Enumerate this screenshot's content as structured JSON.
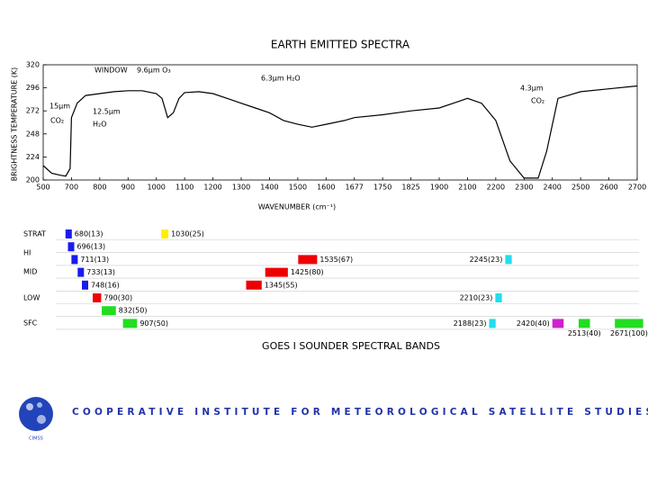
{
  "chart_data": [
    {
      "type": "line",
      "title": "EARTH EMITTED SPECTRA",
      "y_label": "BRIGHTNESS TEMPERATURE (K)",
      "x_label": "WAVENUMBER (cm⁻¹)",
      "ylim": [
        200,
        320
      ],
      "yticks": [
        320,
        296,
        272,
        248,
        224,
        200
      ],
      "xlim": [
        500,
        2700
      ],
      "xticks": [
        500,
        700,
        800,
        900,
        1000,
        1100,
        1200,
        1300,
        1400,
        1500,
        1600,
        1677,
        1750,
        1825,
        1900,
        2100,
        2200,
        2300,
        2400,
        2500,
        2600,
        2700
      ],
      "x": [
        500,
        560,
        620,
        660,
        690,
        700,
        720,
        750,
        800,
        850,
        900,
        950,
        1000,
        1020,
        1040,
        1060,
        1080,
        1100,
        1150,
        1200,
        1250,
        1300,
        1350,
        1400,
        1450,
        1500,
        1550,
        1600,
        1650,
        1677,
        1750,
        1825,
        1900,
        2000,
        2100,
        2150,
        2200,
        2250,
        2300,
        2350,
        2380,
        2420,
        2500,
        2600,
        2700
      ],
      "values": [
        215,
        207,
        205,
        204,
        212,
        265,
        280,
        288,
        290,
        292,
        293,
        293,
        290,
        285,
        265,
        270,
        285,
        291,
        292,
        290,
        285,
        280,
        275,
        270,
        262,
        258,
        255,
        258,
        262,
        265,
        268,
        272,
        275,
        280,
        285,
        280,
        262,
        220,
        202,
        202,
        230,
        285,
        292,
        295,
        298
      ],
      "color": "#000000",
      "annotations": [
        "WINDOW",
        "9.6μm O₃",
        "6.3μm H₂O",
        "15μm",
        "CO₂",
        "12.5μm",
        "H₂O",
        "4.3μm",
        "CO₂"
      ]
    },
    {
      "type": "bands",
      "title": "GOES I SOUNDER SPECTRAL BANDS",
      "row_labels": [
        "STRAT",
        "HI",
        "MID",
        "LOW",
        "SFC"
      ],
      "rows": [
        [
          {
            "value": 680,
            "width": 13,
            "label": "680(13)",
            "color": "#1a1aee"
          },
          {
            "value": 1030,
            "width": 25,
            "label": "1030(25)",
            "color": "#ffee00"
          }
        ],
        [
          {
            "value": 696,
            "width": 13,
            "label": "696(13)",
            "color": "#1a1aee"
          }
        ],
        [
          {
            "value": 711,
            "width": 13,
            "label": "711(13)",
            "color": "#1a1aee"
          },
          {
            "value": 1535,
            "width": 67,
            "label": "1535(67)",
            "color": "#ee0000"
          },
          {
            "value": 2245,
            "width": 23,
            "label": "2245(23)",
            "color": "#22ddee"
          }
        ],
        [
          {
            "value": 733,
            "width": 13,
            "label": "733(13)",
            "color": "#1a1aee"
          },
          {
            "value": 1425,
            "width": 80,
            "label": "1425(80)",
            "color": "#ee0000"
          }
        ],
        [
          {
            "value": 748,
            "width": 16,
            "label": "748(16)",
            "color": "#1a1aee"
          },
          {
            "value": 1345,
            "width": 55,
            "label": "1345(55)",
            "color": "#ee0000"
          }
        ],
        [
          {
            "value": 790,
            "width": 30,
            "label": "790(30)",
            "color": "#ee0000"
          },
          {
            "value": 2210,
            "width": 23,
            "label": "2210(23)",
            "color": "#22ddee"
          }
        ],
        [
          {
            "value": 832,
            "width": 50,
            "label": "832(50)",
            "color": "#22dd22"
          }
        ],
        [
          {
            "value": 907,
            "width": 50,
            "label": "907(50)",
            "color": "#22dd22"
          },
          {
            "value": 2188,
            "width": 23,
            "label": "2188(23)",
            "color": "#22ddee"
          },
          {
            "value": 2420,
            "width": 40,
            "label": "2420(40)",
            "color": "#cc22cc"
          },
          {
            "value": 2513,
            "width": 40,
            "label": "2513(40)",
            "color": "#22dd22"
          },
          {
            "value": 2671,
            "width": 100,
            "label": "2671(100)",
            "color": "#22dd22"
          }
        ]
      ]
    }
  ],
  "footer": {
    "organization": "COOPERATIVE INSTITUTE FOR METEOROLOGICAL SATELLITE STUDIES",
    "logo": "CIMSS"
  }
}
